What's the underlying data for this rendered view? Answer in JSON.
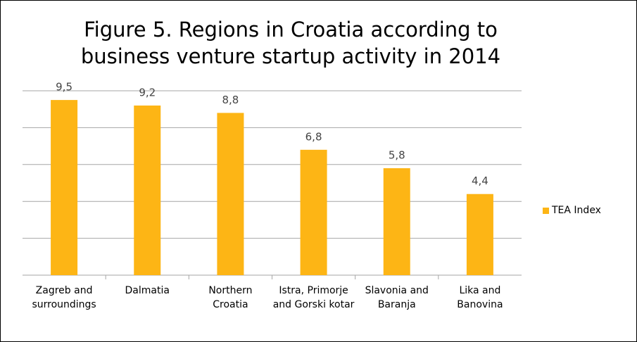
{
  "chart_data": {
    "type": "bar",
    "title": "Figure 5. Regions in Croatia according to business venture startup activity in 2014",
    "categories": [
      "Zagreb and surroundings",
      "Dalmatia",
      "Northern Croatia",
      "Istra, Primorje and Gorski kotar",
      "Slavonia and Baranja",
      "Lika and Banovina"
    ],
    "series": [
      {
        "name": "TEA Index",
        "color": "#FDB515",
        "values": [
          9.5,
          9.2,
          8.8,
          6.8,
          5.8,
          4.4
        ],
        "value_labels": [
          "9,5",
          "9,2",
          "8,8",
          "6,8",
          "5,8",
          "4,4"
        ]
      }
    ],
    "ylim": [
      0,
      10
    ],
    "yticks": [
      0,
      2,
      4,
      6,
      8,
      10
    ],
    "grid": true,
    "legend": "right"
  }
}
